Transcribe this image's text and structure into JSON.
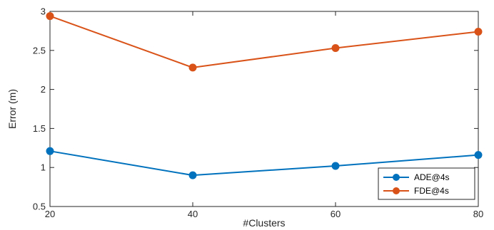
{
  "chart_data": {
    "type": "line",
    "title": "",
    "xlabel": "#Clusters",
    "ylabel": "Error (m)",
    "x": [
      20,
      40,
      60,
      80
    ],
    "xlim": [
      20,
      80
    ],
    "ylim": [
      0.5,
      3
    ],
    "xticks": [
      "20",
      "40",
      "60",
      "80"
    ],
    "yticks": [
      "0.5",
      "1",
      "1.5",
      "2",
      "2.5",
      "3"
    ],
    "grid": false,
    "legend_position": "bottom-right",
    "series": [
      {
        "name": "ADE@4s",
        "color": "#0072BD",
        "values": [
          1.21,
          0.9,
          1.02,
          1.16
        ]
      },
      {
        "name": "FDE@4s",
        "color": "#D95319",
        "values": [
          2.94,
          2.28,
          2.53,
          2.74
        ]
      }
    ]
  }
}
